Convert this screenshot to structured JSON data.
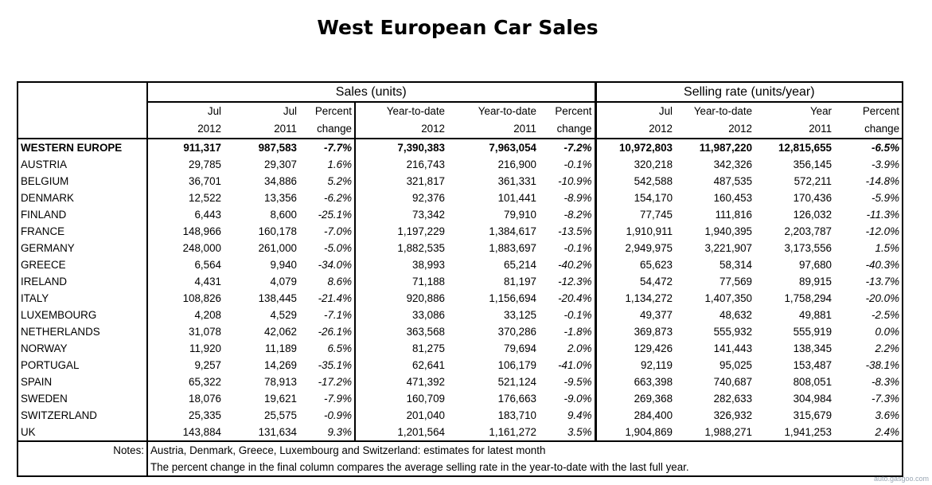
{
  "title": "West European Car Sales",
  "group_headers": {
    "sales": "Sales (units)",
    "selling_rate": "Selling rate (units/year)"
  },
  "header_row1": [
    "Jul",
    "Jul",
    "Percent",
    "Year-to-date",
    "Year-to-date",
    "Percent",
    "Jul",
    "Year-to-date",
    "Year",
    "Percent"
  ],
  "header_row2": [
    "2012",
    "2011",
    "change",
    "2012",
    "2011",
    "change",
    "2012",
    "2012",
    "2011",
    "change"
  ],
  "rows": [
    {
      "country": "WESTERN EUROPE",
      "v": [
        "911,317",
        "987,583",
        "-7.7%",
        "7,390,383",
        "7,963,054",
        "-7.2%",
        "10,972,803",
        "11,987,220",
        "12,815,655",
        "-6.5%"
      ]
    },
    {
      "country": "AUSTRIA",
      "v": [
        "29,785",
        "29,307",
        "1.6%",
        "216,743",
        "216,900",
        "-0.1%",
        "320,218",
        "342,326",
        "356,145",
        "-3.9%"
      ]
    },
    {
      "country": "BELGIUM",
      "v": [
        "36,701",
        "34,886",
        "5.2%",
        "321,817",
        "361,331",
        "-10.9%",
        "542,588",
        "487,535",
        "572,211",
        "-14.8%"
      ]
    },
    {
      "country": "DENMARK",
      "v": [
        "12,522",
        "13,356",
        "-6.2%",
        "92,376",
        "101,441",
        "-8.9%",
        "154,170",
        "160,453",
        "170,436",
        "-5.9%"
      ]
    },
    {
      "country": "FINLAND",
      "v": [
        "6,443",
        "8,600",
        "-25.1%",
        "73,342",
        "79,910",
        "-8.2%",
        "77,745",
        "111,816",
        "126,032",
        "-11.3%"
      ]
    },
    {
      "country": "FRANCE",
      "v": [
        "148,966",
        "160,178",
        "-7.0%",
        "1,197,229",
        "1,384,617",
        "-13.5%",
        "1,910,911",
        "1,940,395",
        "2,203,787",
        "-12.0%"
      ]
    },
    {
      "country": "GERMANY",
      "v": [
        "248,000",
        "261,000",
        "-5.0%",
        "1,882,535",
        "1,883,697",
        "-0.1%",
        "2,949,975",
        "3,221,907",
        "3,173,556",
        "1.5%"
      ]
    },
    {
      "country": "GREECE",
      "v": [
        "6,564",
        "9,940",
        "-34.0%",
        "38,993",
        "65,214",
        "-40.2%",
        "65,623",
        "58,314",
        "97,680",
        "-40.3%"
      ]
    },
    {
      "country": "IRELAND",
      "v": [
        "4,431",
        "4,079",
        "8.6%",
        "71,188",
        "81,197",
        "-12.3%",
        "54,472",
        "77,569",
        "89,915",
        "-13.7%"
      ]
    },
    {
      "country": "ITALY",
      "v": [
        "108,826",
        "138,445",
        "-21.4%",
        "920,886",
        "1,156,694",
        "-20.4%",
        "1,134,272",
        "1,407,350",
        "1,758,294",
        "-20.0%"
      ]
    },
    {
      "country": "LUXEMBOURG",
      "v": [
        "4,208",
        "4,529",
        "-7.1%",
        "33,086",
        "33,125",
        "-0.1%",
        "49,377",
        "48,632",
        "49,881",
        "-2.5%"
      ]
    },
    {
      "country": "NETHERLANDS",
      "v": [
        "31,078",
        "42,062",
        "-26.1%",
        "363,568",
        "370,286",
        "-1.8%",
        "369,873",
        "555,932",
        "555,919",
        "0.0%"
      ]
    },
    {
      "country": "NORWAY",
      "v": [
        "11,920",
        "11,189",
        "6.5%",
        "81,275",
        "79,694",
        "2.0%",
        "129,426",
        "141,443",
        "138,345",
        "2.2%"
      ]
    },
    {
      "country": "PORTUGAL",
      "v": [
        "9,257",
        "14,269",
        "-35.1%",
        "62,641",
        "106,179",
        "-41.0%",
        "92,119",
        "95,025",
        "153,487",
        "-38.1%"
      ]
    },
    {
      "country": "SPAIN",
      "v": [
        "65,322",
        "78,913",
        "-17.2%",
        "471,392",
        "521,124",
        "-9.5%",
        "663,398",
        "740,687",
        "808,051",
        "-8.3%"
      ]
    },
    {
      "country": "SWEDEN",
      "v": [
        "18,076",
        "19,621",
        "-7.9%",
        "160,709",
        "176,663",
        "-9.0%",
        "269,368",
        "282,633",
        "304,984",
        "-7.3%"
      ]
    },
    {
      "country": "SWITZERLAND",
      "v": [
        "25,335",
        "25,575",
        "-0.9%",
        "201,040",
        "183,710",
        "9.4%",
        "284,400",
        "326,932",
        "315,679",
        "3.6%"
      ]
    },
    {
      "country": "UK",
      "v": [
        "143,884",
        "131,634",
        "9.3%",
        "1,201,564",
        "1,161,272",
        "3.5%",
        "1,904,869",
        "1,988,271",
        "1,941,253",
        "2.4%"
      ]
    }
  ],
  "notes": {
    "label": "Notes:",
    "line1": "Austria, Denmark, Greece, Luxembourg and Switzerland: estimates for latest month",
    "line2": "The percent change in the final column compares the average selling rate in the year-to-date with the last full year."
  },
  "watermark": "auto.gasgoo.com"
}
